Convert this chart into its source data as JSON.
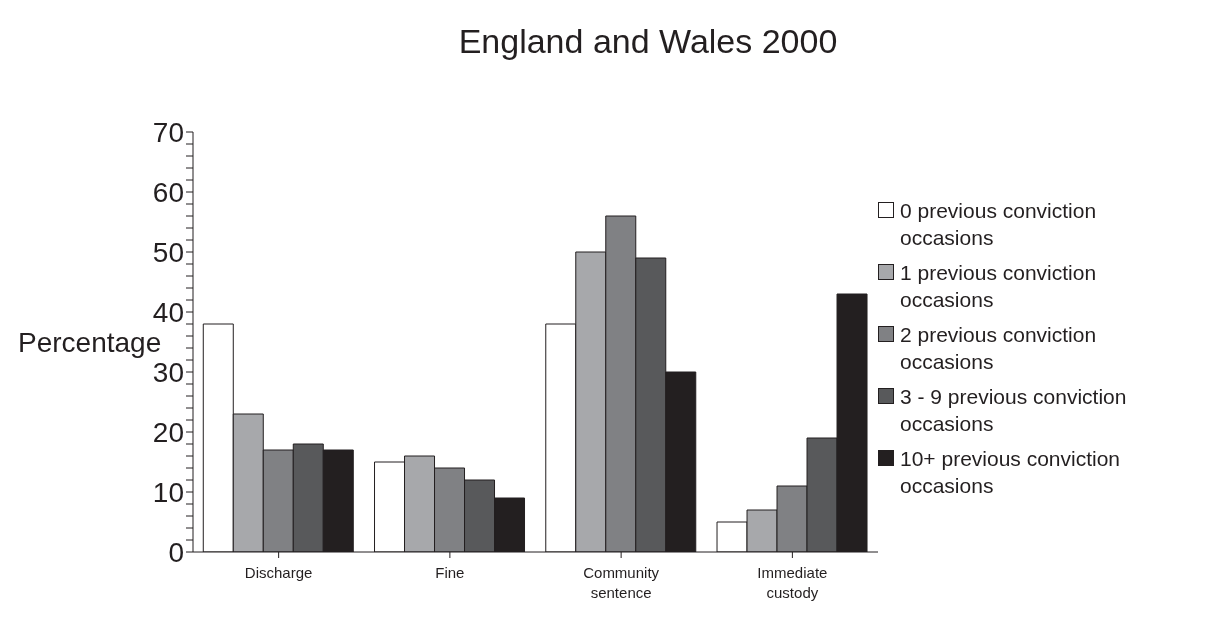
{
  "chart_data": {
    "type": "bar",
    "title": "England and Wales 2000",
    "ylabel": "Percentage",
    "categories": [
      "Discharge",
      "Fine",
      "Community sentence",
      "Immediate custody"
    ],
    "series": [
      {
        "name": "0 previous conviction occasions",
        "color": "#ffffff",
        "values": [
          38,
          15,
          38,
          5
        ]
      },
      {
        "name": "1 previous conviction occasions",
        "color": "#a7a8ab",
        "values": [
          23,
          16,
          50,
          7
        ]
      },
      {
        "name": "2 previous conviction occasions",
        "color": "#808184",
        "values": [
          17,
          14,
          56,
          11
        ]
      },
      {
        "name": "3 - 9 previous conviction occasions",
        "color": "#58595b",
        "values": [
          18,
          12,
          49,
          19
        ]
      },
      {
        "name": "10+ previous conviction occasions",
        "color": "#231f20",
        "values": [
          17,
          9,
          30,
          43
        ]
      }
    ],
    "ylim": [
      0,
      70
    ],
    "yticks": [
      0,
      {
        "value": 2,
        "label": null
      },
      {
        "value": 4,
        "label": null
      },
      {
        "value": 6,
        "label": null
      },
      {
        "value": 8,
        "label": null
      },
      10,
      {
        "value": 12,
        "label": null
      },
      {
        "value": 14,
        "label": null
      },
      {
        "value": 16,
        "label": null
      },
      {
        "value": 18,
        "label": null
      },
      20,
      {
        "value": 22,
        "label": null
      },
      {
        "value": 24,
        "label": null
      },
      {
        "value": 26,
        "label": null
      },
      {
        "value": 28,
        "label": null
      },
      30,
      {
        "value": 32,
        "label": null
      },
      {
        "value": 34,
        "label": null
      },
      {
        "value": 36,
        "label": null
      },
      {
        "value": 38,
        "label": null
      },
      40,
      {
        "value": 42,
        "label": null
      },
      {
        "value": 44,
        "label": null
      },
      {
        "value": 46,
        "label": null
      },
      {
        "value": 48,
        "label": null
      },
      50,
      {
        "value": 52,
        "label": null
      },
      {
        "value": 54,
        "label": null
      },
      {
        "value": 56,
        "label": null
      },
      {
        "value": 58,
        "label": null
      },
      60,
      {
        "value": 62,
        "label": null
      },
      {
        "value": 64,
        "label": null
      },
      {
        "value": 66,
        "label": null
      },
      {
        "value": 68,
        "label": null
      },
      70
    ],
    "grid": false,
    "legend": "right"
  }
}
